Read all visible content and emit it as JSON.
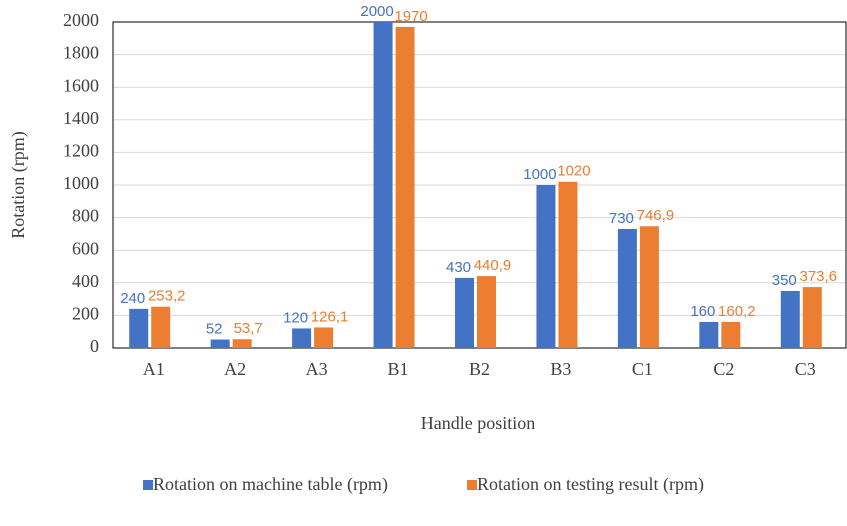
{
  "chart_data": {
    "type": "bar",
    "x_label": "Handle position",
    "y_label": "Rotation (rpm)",
    "categories": [
      "A1",
      "A2",
      "A3",
      "B1",
      "B2",
      "B3",
      "C1",
      "C2",
      "C3"
    ],
    "series": [
      {
        "name": "Rotation on machine table (rpm)",
        "color": "#4472c4",
        "values": [
          240,
          52,
          120,
          2000,
          430,
          1000,
          730,
          160,
          350
        ]
      },
      {
        "name": "Rotation on testing result (rpm)",
        "color": "#ed7d31",
        "values": [
          253.2,
          53.7,
          126.1,
          1970,
          440.9,
          1020,
          746.9,
          160.2,
          373.6
        ],
        "value_labels": [
          "253,2",
          "53,7",
          "126,1",
          "1970",
          "440,9",
          "1020",
          "746,9",
          "160,2",
          "373,6"
        ]
      }
    ],
    "ylim": [
      0,
      2000
    ],
    "yticks": [
      0,
      200,
      400,
      600,
      800,
      1000,
      1200,
      1400,
      1600,
      1800,
      2000
    ],
    "grid": true,
    "legend": "bottom"
  }
}
